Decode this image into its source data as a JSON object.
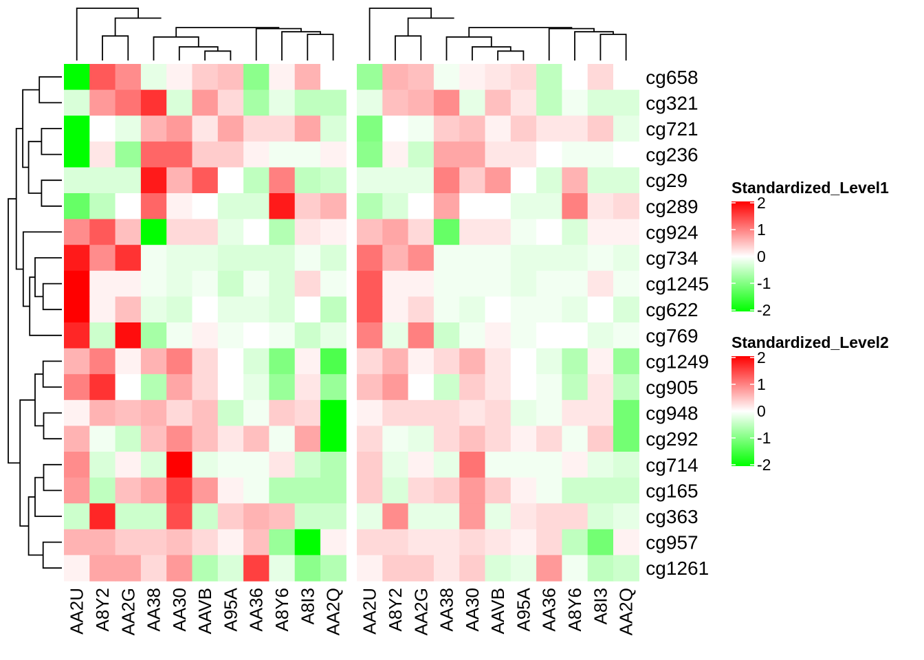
{
  "chart_data": {
    "type": "heatmap",
    "rows": [
      "cg658",
      "cg321",
      "cg721",
      "cg236",
      "cg29",
      "cg289",
      "cg924",
      "cg734",
      "cg1245",
      "cg622",
      "cg769",
      "cg1249",
      "cg905",
      "cg948",
      "cg292",
      "cg714",
      "cg165",
      "cg363",
      "cg957",
      "cg1261"
    ],
    "columns": [
      "AA2U",
      "A8Y2",
      "AA2G",
      "AA38",
      "AA30",
      "AAVB",
      "A95A",
      "AA36",
      "A8Y6",
      "A8I3",
      "AA2Q"
    ],
    "color_scale": {
      "min": -2,
      "max": 2,
      "low": "#00ff00",
      "mid": "#ffffff",
      "high": "#ff0000"
    },
    "panels": [
      {
        "name": "Standardized_Level1",
        "values": [
          [
            -2.0,
            1.3,
            0.9,
            -0.2,
            0.1,
            0.4,
            0.5,
            -0.9,
            0.1,
            0.6,
            0.0
          ],
          [
            -0.3,
            0.8,
            1.1,
            1.6,
            -0.3,
            0.8,
            0.3,
            -0.7,
            -0.2,
            -0.5,
            -0.5
          ],
          [
            -2.0,
            0.0,
            -0.2,
            0.6,
            0.8,
            0.2,
            0.7,
            0.3,
            0.3,
            0.7,
            -0.3
          ],
          [
            -2.0,
            0.2,
            -0.8,
            1.2,
            1.2,
            0.4,
            0.4,
            0.1,
            -0.1,
            -0.1,
            0.1
          ],
          [
            -0.3,
            -0.3,
            -0.3,
            1.8,
            0.6,
            1.3,
            0.0,
            -0.5,
            1.0,
            -0.5,
            -0.4
          ],
          [
            -1.2,
            -0.5,
            0.0,
            1.2,
            0.1,
            0.0,
            -0.3,
            -0.3,
            1.8,
            0.4,
            0.6
          ],
          [
            0.9,
            1.3,
            0.5,
            -2.0,
            0.3,
            0.3,
            -0.2,
            0.0,
            -0.6,
            0.2,
            0.1
          ],
          [
            1.8,
            0.9,
            1.6,
            -0.1,
            -0.2,
            -0.2,
            -0.3,
            -0.3,
            -0.3,
            -0.1,
            -0.3
          ],
          [
            2.0,
            0.1,
            0.1,
            -0.1,
            -0.2,
            -0.1,
            -0.4,
            -0.1,
            -0.3,
            0.3,
            -0.1
          ],
          [
            2.0,
            0.1,
            0.5,
            -0.2,
            -0.3,
            0.0,
            -0.2,
            -0.2,
            -0.3,
            0.0,
            -0.5
          ],
          [
            1.7,
            -0.4,
            1.9,
            -0.7,
            -0.1,
            0.1,
            -0.1,
            0.0,
            -0.1,
            -0.4,
            -0.2
          ],
          [
            0.6,
            1.0,
            0.1,
            0.6,
            1.0,
            0.3,
            0.0,
            -0.3,
            -1.0,
            0.1,
            -1.4
          ],
          [
            1.0,
            1.6,
            0.0,
            -0.6,
            0.7,
            0.3,
            0.0,
            -0.2,
            -0.8,
            0.2,
            -0.8
          ],
          [
            0.1,
            0.6,
            0.5,
            0.6,
            0.3,
            0.5,
            -0.4,
            -0.1,
            0.4,
            0.3,
            -2.0
          ],
          [
            0.6,
            -0.1,
            -0.4,
            0.5,
            0.9,
            0.5,
            0.2,
            0.5,
            -0.1,
            0.7,
            -2.0
          ],
          [
            0.9,
            -0.3,
            0.1,
            -0.3,
            2.0,
            -0.2,
            -0.1,
            -0.1,
            0.2,
            -0.4,
            -0.6
          ],
          [
            0.8,
            -0.5,
            0.5,
            0.7,
            1.5,
            0.8,
            0.1,
            -0.1,
            -0.6,
            -0.6,
            -0.6
          ],
          [
            -0.4,
            1.7,
            -0.4,
            -0.4,
            1.4,
            -0.4,
            0.4,
            0.6,
            0.5,
            -0.4,
            -0.4
          ],
          [
            0.6,
            0.6,
            0.4,
            0.4,
            0.5,
            0.3,
            0.1,
            0.5,
            -0.8,
            -2.0,
            0.1
          ],
          [
            0.1,
            0.7,
            0.7,
            0.3,
            0.8,
            -0.6,
            -0.3,
            1.5,
            -0.2,
            -0.9,
            -0.6
          ]
        ]
      },
      {
        "name": "Standardized_Level2",
        "values": [
          [
            -0.8,
            0.6,
            0.5,
            -0.1,
            0.1,
            0.2,
            0.3,
            -0.5,
            0.0,
            0.3,
            0.0
          ],
          [
            -0.2,
            0.5,
            0.6,
            0.9,
            -0.2,
            0.5,
            0.2,
            -0.5,
            -0.1,
            -0.3,
            -0.3
          ],
          [
            -1.0,
            0.0,
            -0.1,
            0.4,
            0.5,
            0.1,
            0.4,
            0.2,
            0.2,
            0.4,
            -0.2
          ],
          [
            -0.9,
            0.1,
            -0.4,
            0.7,
            0.7,
            0.2,
            0.2,
            0.0,
            -0.1,
            -0.1,
            0.0
          ],
          [
            -0.2,
            -0.2,
            -0.2,
            1.0,
            0.4,
            0.8,
            0.0,
            -0.3,
            0.6,
            -0.3,
            -0.3
          ],
          [
            -0.6,
            -0.3,
            0.0,
            0.7,
            0.0,
            0.0,
            -0.2,
            -0.2,
            1.0,
            0.2,
            0.3
          ],
          [
            0.5,
            0.7,
            0.3,
            -1.2,
            0.2,
            0.2,
            -0.1,
            0.0,
            -0.3,
            0.1,
            0.1
          ],
          [
            1.1,
            0.6,
            0.9,
            -0.1,
            -0.1,
            -0.1,
            -0.2,
            -0.2,
            -0.2,
            -0.1,
            -0.2
          ],
          [
            1.3,
            0.1,
            0.1,
            -0.1,
            -0.1,
            -0.1,
            -0.2,
            -0.1,
            -0.1,
            0.2,
            -0.1
          ],
          [
            1.3,
            0.1,
            0.3,
            -0.1,
            -0.2,
            0.0,
            -0.1,
            -0.1,
            -0.2,
            0.0,
            -0.3
          ],
          [
            1.0,
            -0.2,
            1.0,
            -0.4,
            -0.1,
            0.1,
            -0.1,
            0.0,
            0.0,
            -0.2,
            -0.1
          ],
          [
            0.3,
            0.6,
            0.1,
            0.3,
            0.6,
            0.2,
            0.0,
            -0.2,
            -0.6,
            0.1,
            -0.8
          ],
          [
            0.5,
            0.8,
            0.0,
            -0.4,
            0.4,
            0.2,
            0.0,
            -0.1,
            -0.5,
            0.2,
            -0.5
          ],
          [
            0.1,
            0.3,
            0.3,
            0.3,
            0.2,
            0.3,
            -0.2,
            -0.1,
            0.2,
            0.2,
            -1.1
          ],
          [
            0.3,
            -0.1,
            -0.2,
            0.3,
            0.5,
            0.3,
            0.1,
            0.3,
            -0.1,
            0.4,
            -1.1
          ],
          [
            0.4,
            -0.2,
            0.1,
            -0.2,
            1.1,
            -0.1,
            -0.1,
            -0.1,
            0.1,
            -0.2,
            -0.3
          ],
          [
            0.4,
            -0.3,
            0.3,
            0.4,
            0.8,
            0.4,
            0.1,
            -0.1,
            -0.4,
            -0.4,
            -0.4
          ],
          [
            -0.2,
            0.9,
            -0.2,
            -0.2,
            0.8,
            -0.2,
            0.2,
            0.3,
            0.3,
            -0.3,
            -0.2
          ],
          [
            0.3,
            0.3,
            0.2,
            0.2,
            0.3,
            0.2,
            0.1,
            0.3,
            -0.5,
            -1.1,
            0.1
          ],
          [
            0.1,
            0.4,
            0.4,
            0.2,
            0.4,
            -0.3,
            -0.2,
            0.8,
            -0.1,
            -0.5,
            -0.4
          ]
        ]
      }
    ],
    "legends": [
      {
        "title": "Standardized_Level1",
        "ticks": [
          2,
          1,
          0,
          -1,
          -2
        ]
      },
      {
        "title": "Standardized_Level2",
        "ticks": [
          2,
          1,
          0,
          -1,
          -2
        ]
      }
    ],
    "row_labels_position": "right",
    "column_labels_position": "bottom",
    "row_dendrogram": "left",
    "column_dendrogram": "top",
    "legend_placement": "right"
  }
}
